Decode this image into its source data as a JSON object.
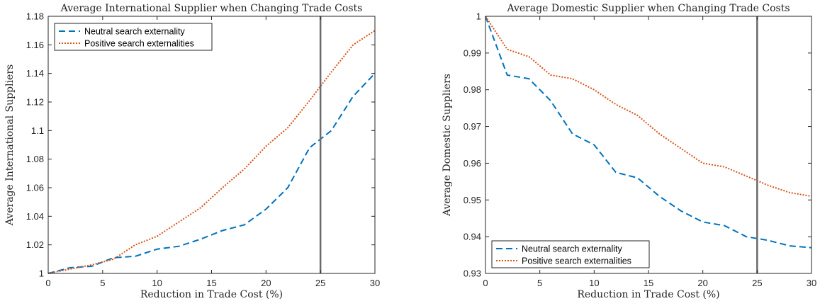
{
  "chart_data": [
    {
      "type": "line",
      "title": "Average International Supplier when Changing Trade Costs",
      "xlabel": "Reduction in Trade Cost (%)",
      "ylabel": "Average International Suppliers",
      "xlim": [
        0,
        30
      ],
      "ylim": [
        1,
        1.18
      ],
      "xticks": [
        0,
        5,
        10,
        15,
        20,
        25,
        30
      ],
      "xtick_labels": [
        "0",
        "5",
        "10",
        "15",
        "20",
        "25",
        "30"
      ],
      "yticks": [
        1,
        1.02,
        1.04,
        1.06,
        1.08,
        1.1,
        1.12,
        1.14,
        1.16,
        1.18
      ],
      "ytick_labels": [
        "1",
        "1.02",
        "1.04",
        "1.06",
        "1.08",
        "1.1",
        "1.12",
        "1.14",
        "1.16",
        "1.18"
      ],
      "grid": false,
      "legend_position": "top-left",
      "vline_x": 25,
      "x": [
        0,
        2,
        4,
        6,
        8,
        10,
        12,
        14,
        16,
        18,
        20,
        22,
        24,
        26,
        28,
        30
      ],
      "series": [
        {
          "name": "Neutral search externality",
          "style": "dashed",
          "color": "#0072BD",
          "values": [
            1.0,
            1.004,
            1.005,
            1.011,
            1.012,
            1.017,
            1.019,
            1.024,
            1.03,
            1.034,
            1.045,
            1.06,
            1.088,
            1.1,
            1.124,
            1.14
          ]
        },
        {
          "name": "Positive search externalities",
          "style": "dotted",
          "color": "#D95319",
          "values": [
            1.0,
            1.003,
            1.006,
            1.01,
            1.02,
            1.026,
            1.036,
            1.046,
            1.06,
            1.073,
            1.089,
            1.102,
            1.121,
            1.141,
            1.16,
            1.17
          ]
        }
      ]
    },
    {
      "type": "line",
      "title": "Average Domestic Supplier when Changing Trade Costs",
      "xlabel": "Reduction in Trade Cost (%)",
      "ylabel": "Average Domestic Suppliers",
      "xlim": [
        0,
        30
      ],
      "ylim": [
        0.93,
        1
      ],
      "xticks": [
        0,
        5,
        10,
        15,
        20,
        25,
        30
      ],
      "xtick_labels": [
        "0",
        "5",
        "10",
        "15",
        "20",
        "25",
        "30"
      ],
      "yticks": [
        0.93,
        0.94,
        0.95,
        0.96,
        0.97,
        0.98,
        0.99,
        1
      ],
      "ytick_labels": [
        "0.93",
        "0.94",
        "0.95",
        "0.96",
        "0.97",
        "0.98",
        "0.99",
        "1"
      ],
      "grid": false,
      "legend_position": "bottom-left",
      "vline_x": 25,
      "x": [
        0,
        2,
        4,
        6,
        8,
        10,
        12,
        14,
        16,
        18,
        20,
        22,
        24,
        26,
        28,
        30
      ],
      "series": [
        {
          "name": "Neutral search externality",
          "style": "dashed",
          "color": "#0072BD",
          "values": [
            1.0,
            0.984,
            0.983,
            0.977,
            0.968,
            0.965,
            0.9575,
            0.956,
            0.951,
            0.947,
            0.944,
            0.943,
            0.94,
            0.939,
            0.9375,
            0.937
          ]
        },
        {
          "name": "Positive search externalities",
          "style": "dotted",
          "color": "#D95319",
          "values": [
            1.0,
            0.991,
            0.989,
            0.984,
            0.983,
            0.98,
            0.976,
            0.973,
            0.968,
            0.964,
            0.96,
            0.959,
            0.9565,
            0.954,
            0.952,
            0.951
          ]
        }
      ]
    }
  ]
}
